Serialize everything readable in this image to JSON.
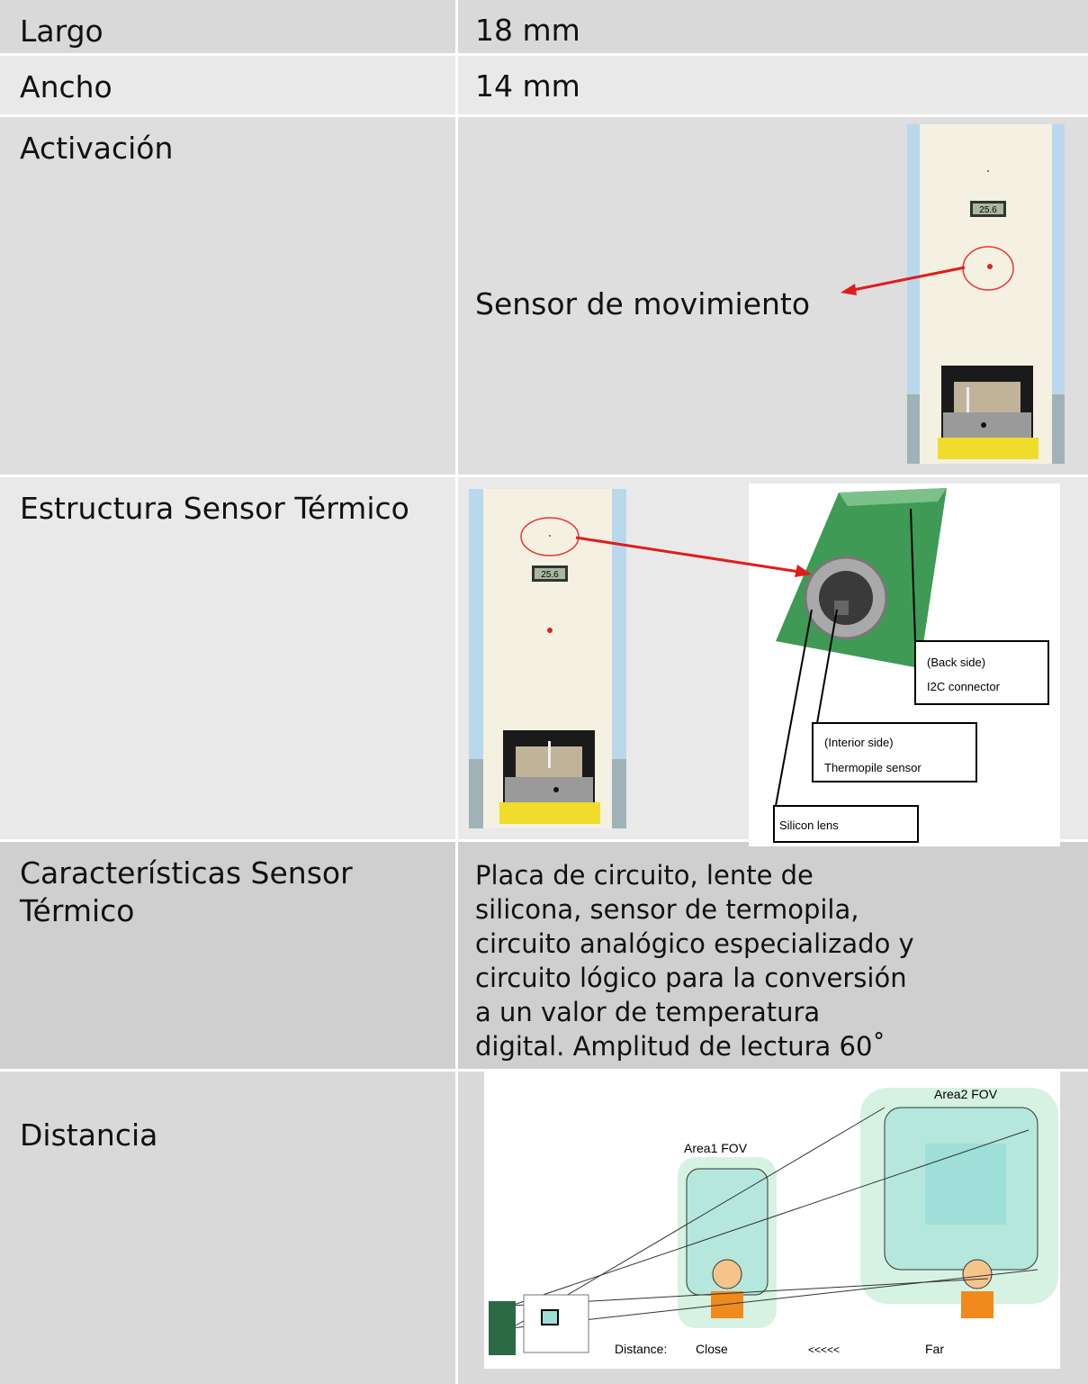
{
  "table": {
    "rows": [
      [
        "Largo",
        "18 mm"
      ],
      [
        "Ancho",
        "14 mm"
      ],
      [
        "Activación",
        "Sensor de movimiento"
      ],
      [
        "Estructura Sensor Térmico"
      ],
      [
        "Características Sensor Térmico",
        [
          "Placa de circuito, lente de",
          "silicona, sensor de termopila,",
          "circuito analógico especializado y",
          "circuito lógico para la conversión",
          "a un valor de temperatura",
          "digital. Amplitud de lectura 60˚"
        ]
      ],
      [
        "Distancia"
      ]
    ]
  },
  "figures": {
    "lcd": "25.6",
    "sensor": {
      "back_side": "(Back side)",
      "connector": "I2C connector",
      "interior_side": "(Interior side)",
      "thermopile": "Thermopile sensor",
      "lens": "Silicon lens"
    },
    "distance": {
      "area2": "Area2 FOV",
      "area1": "Area1 FOV",
      "distance": "Distance:",
      "close": "Close",
      "arrows": "<<<<<",
      "far": "Far"
    }
  }
}
